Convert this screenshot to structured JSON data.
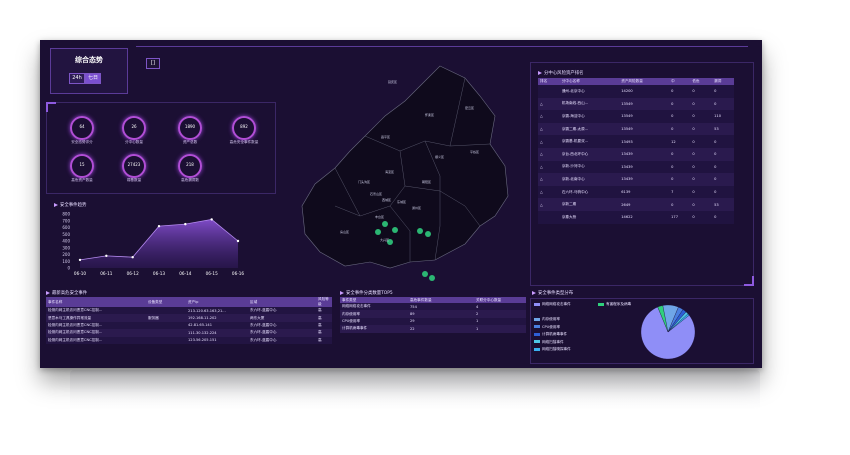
{
  "header": {
    "title": "综合态势",
    "range_buttons": [
      "24h",
      "七日"
    ],
    "map_button": "[]"
  },
  "stats": [
    {
      "value": "64",
      "label": "安全态势评分"
    },
    {
      "value": "26",
      "label": "分中心数量"
    },
    {
      "value": "1890",
      "label": "资产总数"
    },
    {
      "value": "892",
      "label": "高危安全事件数量"
    },
    {
      "value": "15",
      "label": "高危资产数量"
    },
    {
      "value": "27423",
      "label": "弱基数量"
    },
    {
      "value": "218",
      "label": "高危漏洞数"
    }
  ],
  "trend": {
    "title": "安全事件趋势",
    "chart_data": {
      "type": "area",
      "categories": [
        "06-10",
        "06-11",
        "06-12",
        "06-13",
        "06-14",
        "06-15",
        "06-16"
      ],
      "values": [
        120,
        180,
        160,
        620,
        650,
        720,
        400
      ],
      "yticks": [
        "800",
        "700",
        "600",
        "500",
        "400",
        "300",
        "200",
        "100",
        "0"
      ],
      "ylim": [
        0,
        800
      ]
    }
  },
  "map": {
    "labels": [
      "延庆区",
      "怀柔区",
      "密云区",
      "昌平区",
      "平谷区",
      "顺义区",
      "门头沟区",
      "海淀区",
      "朝阳区",
      "石景山区",
      "西城区",
      "东城区",
      "丰台区",
      "通州区",
      "房山区",
      "大兴区"
    ]
  },
  "ranking": {
    "title": "分中心风险资产排名",
    "columns": [
      "排名",
      "分中心名称",
      "资产风险数量",
      "中",
      "低危",
      "漏洞"
    ],
    "rows": [
      [
        "",
        "通州-北京中心",
        "14200",
        "0",
        "0",
        "0"
      ],
      [
        "△",
        "机场南线-西山...",
        "13549",
        "0",
        "0",
        "0"
      ],
      [
        "△",
        "京霸-海淀中心",
        "13549",
        "0",
        "0",
        "110"
      ],
      [
        "△",
        "京霸二期-太原...",
        "13549",
        "0",
        "0",
        "53"
      ],
      [
        "△",
        "京霸基-机要双...",
        "13493",
        "12",
        "0",
        "0"
      ],
      [
        "△",
        "京台-西北环中心",
        "13439",
        "0",
        "0",
        "0"
      ],
      [
        "△",
        "京新-沙河中心",
        "13439",
        "0",
        "0",
        "0"
      ],
      [
        "△",
        "京新-北南中心",
        "13439",
        "0",
        "0",
        "0"
      ],
      [
        "△",
        "石六环-马驹中心",
        "6139",
        "7",
        "0",
        "0"
      ],
      [
        "△",
        "京新二期",
        "2649",
        "0",
        "0",
        "53"
      ],
      [
        "",
        "京秦大桥",
        "14622",
        "177",
        "0",
        "0"
      ]
    ]
  },
  "latest_events": {
    "title": "最新高危安全事件",
    "columns": [
      "事件名称",
      "设备类型",
      "资产ip",
      "区域",
      "风险等级"
    ],
    "rows": [
      [
        "检测内网主机访问恶意CNC控制...",
        "",
        "213.120.63.163,21...",
        "东六环-蓝盾中心",
        "高"
      ],
      [
        "恶意木马工具操作异常流量",
        "服务器",
        "192.168.11.202",
        "两东大厦",
        "高"
      ],
      [
        "检测内网主机访问恶意CNC控制...",
        "",
        "42.81.65.141",
        "东六环-蓝盾中心",
        "高"
      ],
      [
        "检测内网主机访问恶意CNC控制...",
        "",
        "111.30.132.224",
        "东六环-蓝盾中心",
        "高"
      ],
      [
        "检测内网主机访问恶意CNC控制...",
        "",
        "123.56.205.151",
        "东六环-蓝盾中心",
        "高"
      ]
    ]
  },
  "top5": {
    "title": "安全事件分类数量TOP5",
    "columns": [
      "事件类型",
      "高危事件数量",
      "关联分中心数量"
    ],
    "rows": [
      [
        "网络网络攻击事件",
        "754",
        "4"
      ],
      [
        "内存使用率",
        "89",
        "2"
      ],
      [
        "CPU使用率",
        "29",
        "1"
      ],
      [
        "计算机病毒事件",
        "22",
        "1"
      ]
    ]
  },
  "distribution": {
    "title": "安全事件类型分布",
    "chart_data": {
      "type": "pie",
      "labels": [
        "网络网络攻击事件",
        "有害程序及病毒",
        "内存使用率",
        "CPU使用率",
        "计算机病毒事件",
        "网络扫描事件",
        "网络扫描嗅探事件"
      ],
      "values": [
        754,
        30,
        89,
        29,
        22,
        15,
        10
      ],
      "colors": [
        "#8f8ef7",
        "#2fd07c",
        "#6fa6e8",
        "#4a7fe0",
        "#2e5fd6",
        "#4ec6e6",
        "#3ab0f0"
      ]
    }
  }
}
